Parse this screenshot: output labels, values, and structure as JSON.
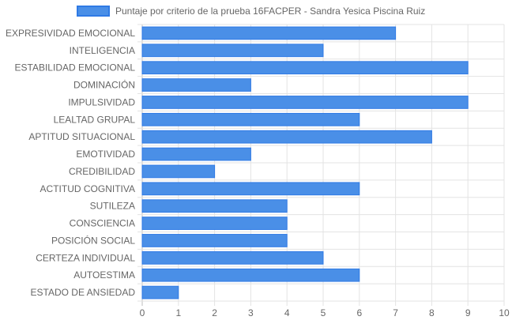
{
  "chart_data": {
    "type": "bar",
    "orientation": "horizontal",
    "title": "",
    "xlabel": "",
    "ylabel": "",
    "xlim": [
      0,
      10
    ],
    "x_ticks": [
      "0",
      "1",
      "2",
      "3",
      "4",
      "5",
      "6",
      "7",
      "8",
      "9",
      "10"
    ],
    "grid": true,
    "legend_position": "top",
    "categories": [
      "EXPRESIVIDAD EMOCIONAL",
      "INTELIGENCIA",
      "ESTABILIDAD EMOCIONAL",
      "DOMINACIÓN",
      "IMPULSIVIDAD",
      "LEALTAD GRUPAL",
      "APTITUD SITUACIONAL",
      "EMOTIVIDAD",
      "CREDIBILIDAD",
      "ACTITUD COGNITIVA",
      "SUTILEZA",
      "CONSCIENCIA",
      "POSICIÓN SOCIAL",
      "CERTEZA INDIVIDUAL",
      "AUTOESTIMA",
      "ESTADO DE ANSIEDAD"
    ],
    "series": [
      {
        "name": "Puntaje por criterio de la prueba 16FACPER - Sandra Yesica Piscina Ruiz",
        "values": [
          7,
          5,
          9,
          3,
          9,
          6,
          8,
          3,
          2,
          6,
          4,
          4,
          4,
          5,
          6,
          1
        ],
        "color": "#4a8fe7",
        "border_color": "#2f7ae5"
      }
    ]
  }
}
